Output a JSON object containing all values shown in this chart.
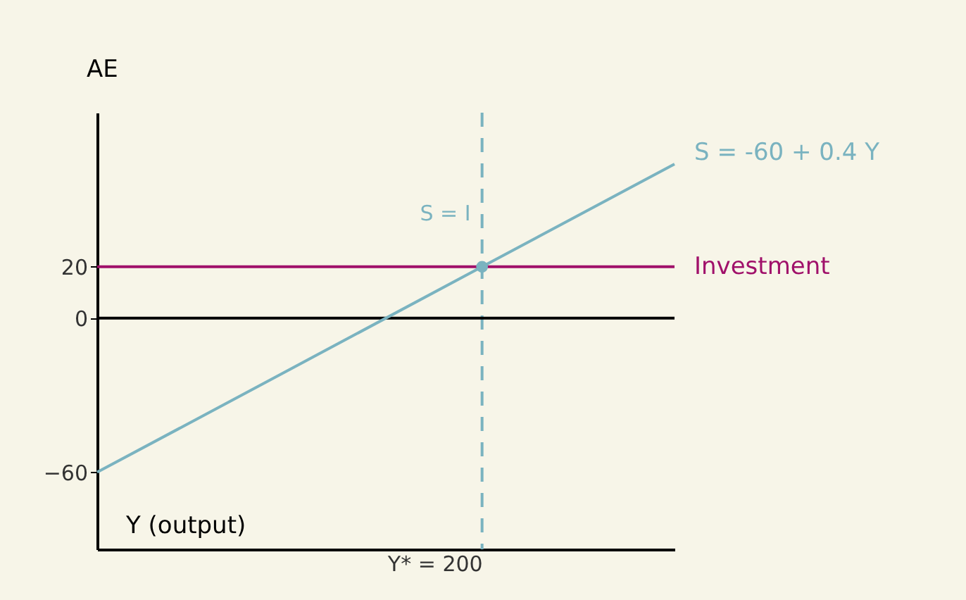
{
  "chart_data": {
    "type": "line",
    "xlabel": "Y (output)",
    "ylabel": "AE",
    "categories": [
      null,
      null,
      "Y* = 200",
      null
    ],
    "ylim": [
      -90,
      80
    ],
    "yticks": [
      -60,
      0,
      20
    ],
    "series": [
      {
        "name": "S = -60 + 0.4 Y",
        "color": "#7ab3c0",
        "values": [
          -60,
          -20,
          20,
          60
        ]
      },
      {
        "name": "Investment",
        "color": "#a0106a",
        "values": [
          20,
          20,
          20,
          20
        ]
      },
      {
        "type": "scatter",
        "color": "#7ab3c0",
        "x": [
          "Y* = 200"
        ],
        "values": [
          20
        ]
      }
    ],
    "ref_lines": [
      {
        "axis": "y",
        "value": 0,
        "color": "#000000"
      },
      {
        "axis": "x",
        "value": "Y* = 200",
        "color": "#7ab3c0",
        "line_style": "dashed"
      }
    ],
    "annotations": [
      {
        "text": "S = I",
        "x": "Y* = 200",
        "y": 20
      }
    ]
  }
}
